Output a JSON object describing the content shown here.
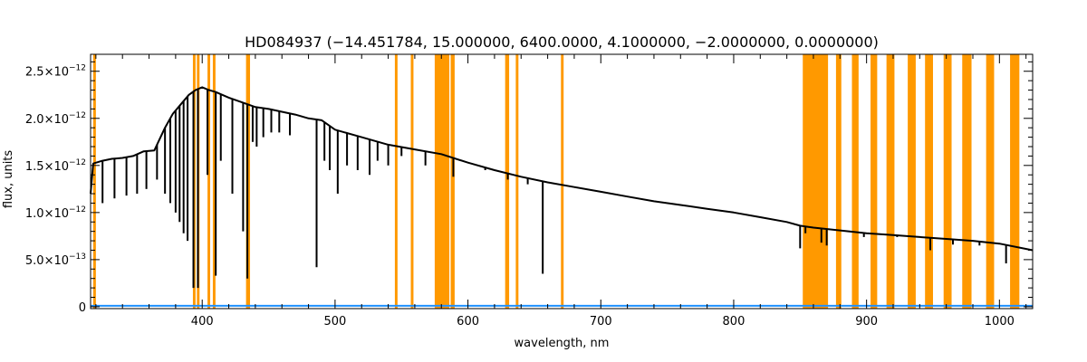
{
  "chart_data": {
    "type": "line",
    "title": "HD084937    (−14.451784, 15.000000, 6400.0000, 4.1000000, −2.0000000, 0.0000000)",
    "xlabel": "wavelength, nm",
    "ylabel": "flux, units",
    "xlim": [
      316,
      1025
    ],
    "ylim": [
      -2e-14,
      2.68e-12
    ],
    "grid": false,
    "x_ticks": [
      400,
      500,
      600,
      700,
      800,
      900,
      1000
    ],
    "x_tick_labels": [
      "400",
      "500",
      "600",
      "700",
      "800",
      "900",
      "1000"
    ],
    "y_ticks": [
      0,
      5e-13,
      1e-12,
      1.5e-12,
      2e-12,
      2.5e-12
    ],
    "y_tick_labels": [
      {
        "mantissa": "0",
        "exponent": ""
      },
      {
        "mantissa": "5.0×10",
        "exponent": "−13"
      },
      {
        "mantissa": "1.0×10",
        "exponent": "−12"
      },
      {
        "mantissa": "1.5×10",
        "exponent": "−12"
      },
      {
        "mantissa": "2.0×10",
        "exponent": "−12"
      },
      {
        "mantissa": "2.5×10",
        "exponent": "−12"
      }
    ],
    "colors": {
      "flux": "#000000",
      "error": "#1e90ff",
      "masked": "#ff9900",
      "axes": "#000000"
    },
    "series": [
      {
        "role": "flux",
        "x": [
          316,
          318,
          325,
          332,
          340,
          348,
          356,
          364,
          372,
          378,
          384,
          390,
          395,
          400,
          405,
          410,
          420,
          430,
          440,
          450,
          460,
          470,
          480,
          490,
          500,
          520,
          540,
          560,
          580,
          600,
          620,
          640,
          660,
          680,
          700,
          720,
          740,
          760,
          780,
          800,
          820,
          840,
          850,
          860,
          880,
          900,
          920,
          940,
          960,
          980,
          1000,
          1025
        ],
        "y": [
          1.2e-12,
          1.52e-12,
          1.55e-12,
          1.57e-12,
          1.58e-12,
          1.6e-12,
          1.65e-12,
          1.66e-12,
          1.9e-12,
          2.05e-12,
          2.15e-12,
          2.25e-12,
          2.3e-12,
          2.33e-12,
          2.3e-12,
          2.28e-12,
          2.22e-12,
          2.17e-12,
          2.12e-12,
          2.1e-12,
          2.07e-12,
          2.04e-12,
          2e-12,
          1.98e-12,
          1.88e-12,
          1.8e-12,
          1.72e-12,
          1.67e-12,
          1.62e-12,
          1.53e-12,
          1.45e-12,
          1.38e-12,
          1.32e-12,
          1.27e-12,
          1.22e-12,
          1.17e-12,
          1.12e-12,
          1.08e-12,
          1.04e-12,
          1e-12,
          9.5e-13,
          9e-13,
          8.6e-13,
          8.4e-13,
          8.1e-13,
          7.8e-13,
          7.6e-13,
          7.4e-13,
          7.2e-13,
          7e-13,
          6.7e-13,
          6e-13
        ]
      },
      {
        "role": "absorption_lines",
        "x": [
          325,
          334,
          343,
          351,
          358,
          366,
          372,
          376,
          380,
          383,
          386,
          389,
          393.4,
          396.8,
          404,
          410.2,
          414,
          422.7,
          430.8,
          434,
          438,
          441,
          446,
          452,
          458,
          466,
          486.1,
          492,
          496,
          502,
          509,
          517,
          526,
          532,
          540,
          550,
          568,
          589,
          613,
          630,
          645,
          656.3,
          850,
          854,
          866,
          870,
          898,
          923,
          935,
          948,
          965,
          985,
          1005
        ],
        "y": [
          1.1e-12,
          1.15e-12,
          1.18e-12,
          1.2e-12,
          1.25e-12,
          1.35e-12,
          1.2e-12,
          1.1e-12,
          1e-12,
          9e-13,
          7.8e-13,
          7e-13,
          2e-13,
          2e-13,
          1.4e-12,
          3.3e-13,
          1.55e-12,
          1.2e-12,
          8e-13,
          3e-13,
          1.75e-12,
          1.7e-12,
          1.8e-12,
          1.85e-12,
          1.85e-12,
          1.82e-12,
          4.2e-13,
          1.55e-12,
          1.45e-12,
          1.2e-12,
          1.5e-12,
          1.45e-12,
          1.4e-12,
          1.55e-12,
          1.5e-12,
          1.6e-12,
          1.5e-12,
          1.38e-12,
          1.45e-12,
          1.35e-12,
          1.3e-12,
          3.5e-13,
          6.2e-13,
          7.8e-13,
          6.8e-13,
          6.5e-13,
          7.4e-13,
          7.4e-13,
          7.4e-13,
          6e-13,
          6.6e-13,
          6.5e-13,
          4.6e-13
        ]
      },
      {
        "role": "error",
        "x": [
          316,
          1025
        ],
        "y": [
          1e-14,
          1e-14
        ]
      }
    ],
    "masked_bands": [
      [
        318,
        320
      ],
      [
        393,
        395
      ],
      [
        396,
        398
      ],
      [
        404,
        406
      ],
      [
        408,
        410
      ],
      [
        433,
        436
      ],
      [
        545,
        547
      ],
      [
        557,
        559
      ],
      [
        575,
        586
      ],
      [
        587,
        590
      ],
      [
        628,
        631
      ],
      [
        636,
        638
      ],
      [
        670,
        672
      ],
      [
        852,
        871
      ],
      [
        877,
        881
      ],
      [
        889,
        894
      ],
      [
        903,
        908
      ],
      [
        915,
        921
      ],
      [
        931,
        937
      ],
      [
        944,
        950
      ],
      [
        958,
        964
      ],
      [
        972,
        979
      ],
      [
        990,
        996
      ],
      [
        1008,
        1015
      ]
    ]
  }
}
